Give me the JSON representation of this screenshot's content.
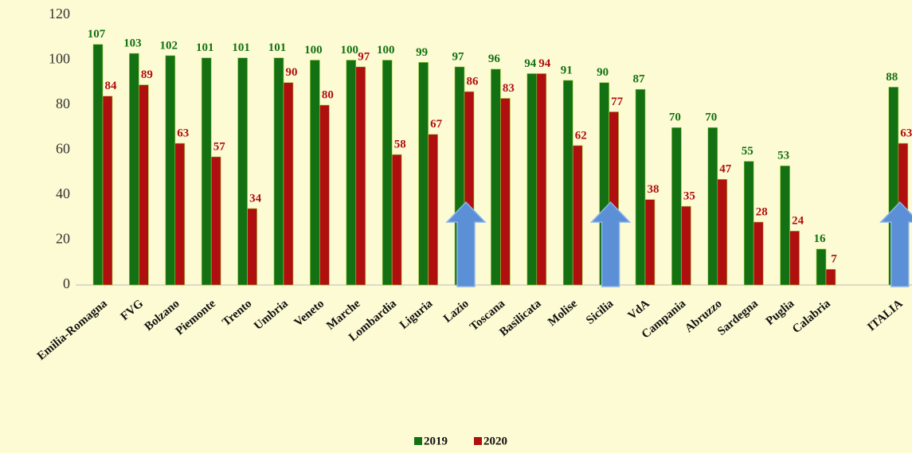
{
  "chart_data": {
    "type": "bar",
    "categories": [
      "Emilia-Romagna",
      "FVG",
      "Bolzano",
      "Piemonte",
      "Trento",
      "Umbria",
      "Veneto",
      "Marche",
      "Lombardia",
      "Liguria",
      "Lazio",
      "Toscana",
      "Basilicata",
      "Molise",
      "Sicilia",
      "VdA",
      "Campania",
      "Abruzzo",
      "Sardegna",
      "Puglia",
      "Calabria",
      null,
      "ITALIA"
    ],
    "series": [
      {
        "name": "2019",
        "color": "#137113",
        "values": [
          107,
          103,
          102,
          101,
          101,
          101,
          100,
          100,
          100,
          99,
          97,
          96,
          94,
          91,
          90,
          87,
          70,
          70,
          55,
          53,
          16,
          null,
          88
        ]
      },
      {
        "name": "2020",
        "color": "#b00f0f",
        "values": [
          84,
          89,
          63,
          57,
          34,
          90,
          80,
          97,
          58,
          67,
          86,
          83,
          94,
          62,
          77,
          38,
          35,
          47,
          28,
          24,
          7,
          null,
          63
        ]
      }
    ],
    "ylim": [
      0,
      120
    ],
    "yticks": [
      0,
      20,
      40,
      60,
      80,
      100,
      120
    ],
    "grid": false,
    "legend": "bottom"
  }
}
